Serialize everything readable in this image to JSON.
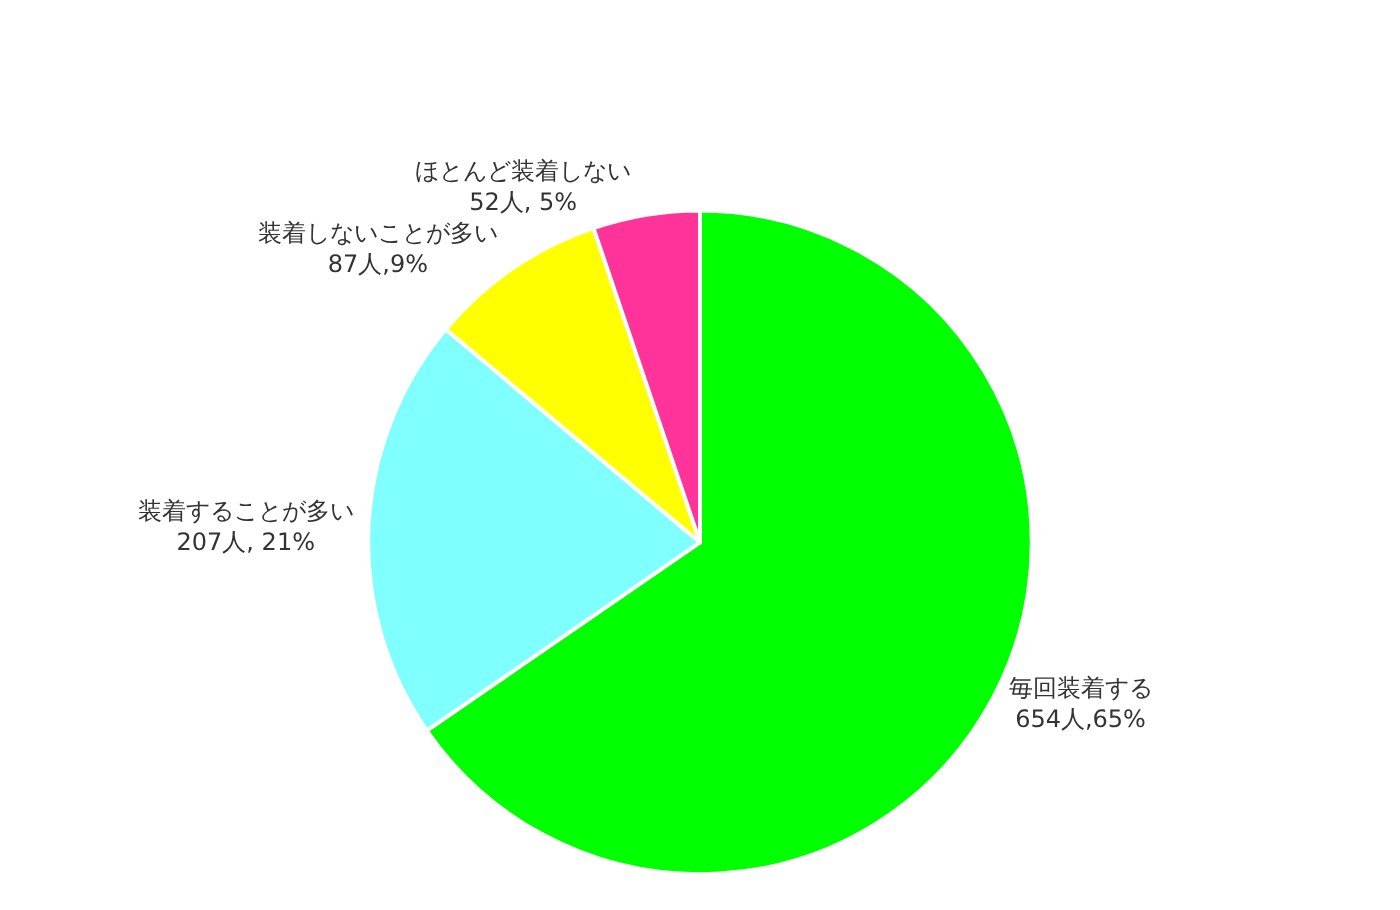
{
  "chart_data": {
    "type": "pie",
    "categories": [
      "毎回装着する",
      "装着することが多い",
      "装着しないことが多い",
      "ほとんど装着しない"
    ],
    "values": [
      654,
      207,
      87,
      52
    ],
    "value_labels": [
      "654人,65%",
      "207人, 21%",
      "87人,9%",
      "52人, 5%"
    ],
    "colors": [
      "#00ff00",
      "#80ffff",
      "#ffff00",
      "#ff3399"
    ],
    "legend": false
  }
}
